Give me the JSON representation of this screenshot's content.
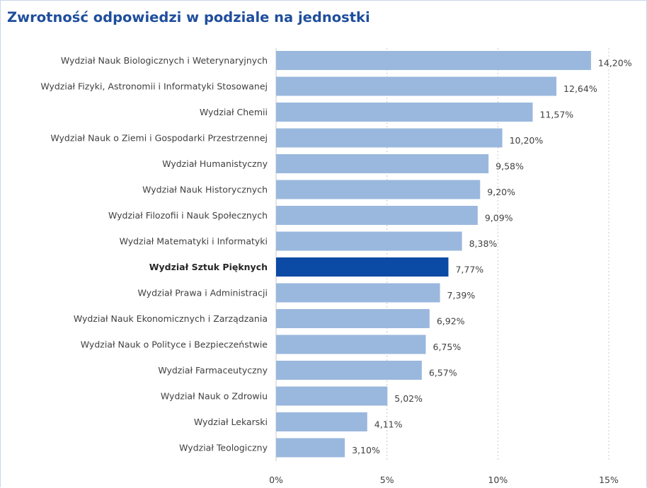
{
  "chart_data": {
    "type": "bar",
    "orientation": "horizontal",
    "title": "Zwrotność odpowiedzi w podziale na jednostki",
    "categories": [
      "Wydział Nauk Biologicznych i Weterynaryjnych",
      "Wydział Fizyki, Astronomii i Informatyki Stosowanej",
      "Wydział Chemii",
      "Wydział Nauk o Ziemi i Gospodarki Przestrzennej",
      "Wydział Humanistyczny",
      "Wydział Nauk Historycznych",
      "Wydział Filozofii i Nauk Społecznych",
      "Wydział Matematyki i Informatyki",
      "Wydział Sztuk Pięknych",
      "Wydział Prawa i Administracji",
      "Wydział Nauk Ekonomicznych i Zarządzania",
      "Wydział Nauk o Polityce i Bezpieczeństwie",
      "Wydział Farmaceutyczny",
      "Wydział Nauk o Zdrowiu",
      "Wydział Lekarski",
      "Wydział Teologiczny"
    ],
    "values": [
      14.2,
      12.64,
      11.57,
      10.2,
      9.58,
      9.2,
      9.09,
      8.38,
      7.77,
      7.39,
      6.92,
      6.75,
      6.57,
      5.02,
      4.11,
      3.1
    ],
    "value_labels": [
      "14,20%",
      "12,64%",
      "11,57%",
      "10,20%",
      "9,58%",
      "9,20%",
      "9,09%",
      "8,38%",
      "7,77%",
      "7,39%",
      "6,92%",
      "6,75%",
      "6,57%",
      "5,02%",
      "4,11%",
      "3,10%"
    ],
    "highlighted_category": "Wydział Sztuk Pięknych",
    "xlim": [
      0,
      15
    ],
    "xticks": [
      0,
      5,
      10,
      15
    ],
    "xtick_labels": [
      "0%",
      "5%",
      "10%",
      "15%"
    ],
    "grid": "vertical dotted",
    "colors": {
      "bar": "#9ab8de",
      "highlight": "#0b4aa5",
      "title": "#1f4e9c",
      "grid": "#c8c8c8"
    }
  }
}
